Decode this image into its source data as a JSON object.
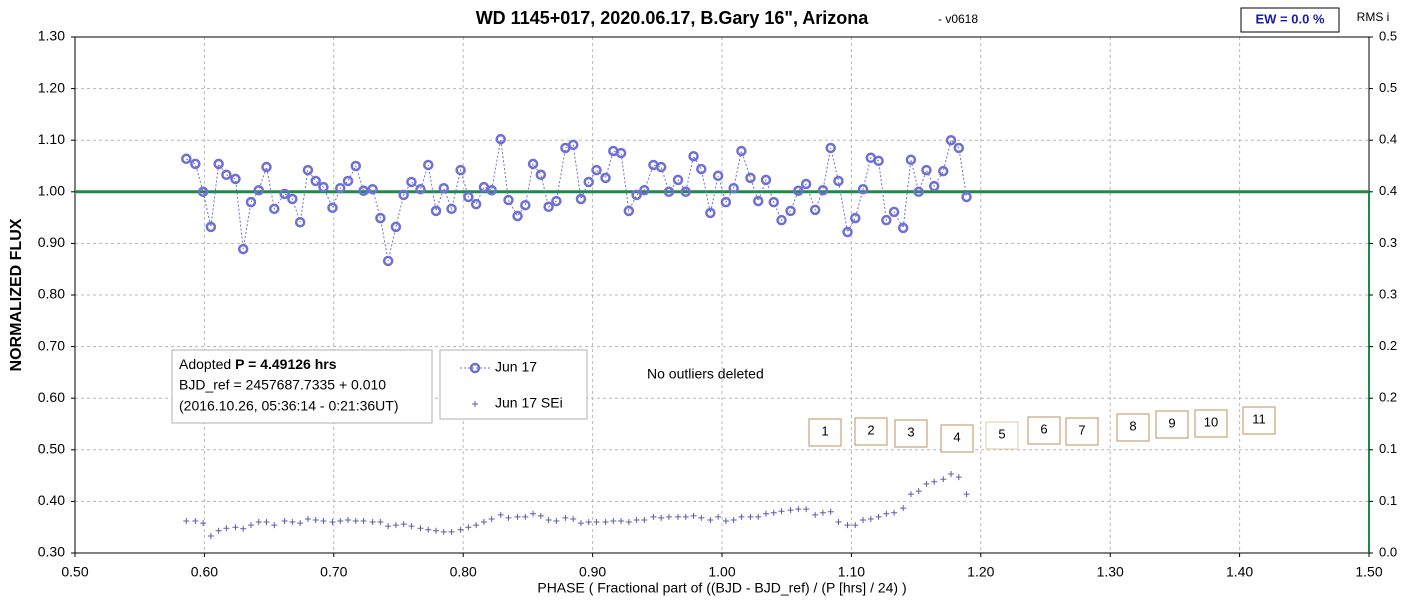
{
  "chart_data": {
    "type": "scatter",
    "title": "WD 1145+017, 2020.06.17, B.Gary 16\", Arizona",
    "version": "- v0618",
    "ew_label": "EW = 0.0 %",
    "y2_label": "RMS i",
    "ylabel": "NORMALIZED FLUX",
    "xlabel": "PHASE ( Fractional part of ((BJD - BJD_ref) / (P [hrs] / 24) )",
    "info": {
      "prefix": "Adopted",
      "period": "P = 4.49126 hrs",
      "line2": "BJD_ref = 2457687.7335 + 0.010",
      "line3": "(2016.10.26, 05:36:14 - 0:21:36UT)"
    },
    "note": "No outliers deleted",
    "box_labels": [
      "1",
      "2",
      "3",
      "4",
      "5",
      "6",
      "7",
      "8",
      "9",
      "10",
      "11"
    ],
    "reference_line": 1.0,
    "reference_color": "#1e8a4a",
    "grid": true,
    "xlim": [
      0.5,
      1.5
    ],
    "xticks": [
      {
        "value": 0.5,
        "label": "0.50"
      },
      {
        "value": 0.6,
        "label": "0.60"
      },
      {
        "value": 0.7,
        "label": "0.70"
      },
      {
        "value": 0.8,
        "label": "0.80"
      },
      {
        "value": 0.9,
        "label": "0.90"
      },
      {
        "value": 1.0,
        "label": "1.00"
      },
      {
        "value": 1.1,
        "label": "1.10"
      },
      {
        "value": 1.2,
        "label": "1.20"
      },
      {
        "value": 1.3,
        "label": "1.30"
      },
      {
        "value": 1.4,
        "label": "1.40"
      },
      {
        "value": 1.5,
        "label": "1.50"
      }
    ],
    "ylim": [
      0.3,
      1.3
    ],
    "yticks": [
      {
        "value": 0.3,
        "label": "0.30"
      },
      {
        "value": 0.4,
        "label": "0.40"
      },
      {
        "value": 0.5,
        "label": "0.50"
      },
      {
        "value": 0.6,
        "label": "0.60"
      },
      {
        "value": 0.7,
        "label": "0.70"
      },
      {
        "value": 0.8,
        "label": "0.80"
      },
      {
        "value": 0.9,
        "label": "0.90"
      },
      {
        "value": 1.0,
        "label": "1.00"
      },
      {
        "value": 1.1,
        "label": "1.10"
      },
      {
        "value": 1.2,
        "label": "1.20"
      },
      {
        "value": 1.3,
        "label": "1.30"
      }
    ],
    "y2lim": [
      0.0,
      0.5
    ],
    "y2ticks": [
      {
        "value": 0.0,
        "label": "0.0"
      },
      {
        "value": 0.05,
        "label": "0.1"
      },
      {
        "value": 0.1,
        "label": "0.1"
      },
      {
        "value": 0.15,
        "label": "0.2"
      },
      {
        "value": 0.2,
        "label": "0.2"
      },
      {
        "value": 0.25,
        "label": "0.3"
      },
      {
        "value": 0.3,
        "label": "0.3"
      },
      {
        "value": 0.35,
        "label": "0.4"
      },
      {
        "value": 0.4,
        "label": "0.4"
      },
      {
        "value": 0.45,
        "label": "0.5"
      },
      {
        "value": 0.5,
        "label": "0.5"
      }
    ],
    "x": [
      0.586,
      0.593,
      0.599,
      0.605,
      0.611,
      0.617,
      0.624,
      0.63,
      0.636,
      0.642,
      0.648,
      0.654,
      0.662,
      0.668,
      0.674,
      0.68,
      0.686,
      0.692,
      0.699,
      0.705,
      0.711,
      0.717,
      0.723,
      0.73,
      0.736,
      0.742,
      0.748,
      0.754,
      0.76,
      0.767,
      0.773,
      0.779,
      0.785,
      0.791,
      0.798,
      0.804,
      0.81,
      0.816,
      0.822,
      0.829,
      0.835,
      0.842,
      0.848,
      0.854,
      0.86,
      0.866,
      0.872,
      0.879,
      0.885,
      0.891,
      0.897,
      0.903,
      0.91,
      0.916,
      0.922,
      0.928,
      0.934,
      0.94,
      0.947,
      0.953,
      0.959,
      0.966,
      0.972,
      0.978,
      0.984,
      0.991,
      0.997,
      1.003,
      1.009,
      1.015,
      1.022,
      1.028,
      1.034,
      1.04,
      1.046,
      1.053,
      1.059,
      1.065,
      1.072,
      1.078,
      1.084,
      1.09,
      1.097,
      1.103,
      1.109,
      1.115,
      1.121,
      1.127,
      1.133,
      1.14,
      1.146,
      1.152,
      1.158,
      1.164,
      1.171,
      1.177,
      1.183,
      1.189
    ],
    "series": [
      {
        "name": "Jun 17",
        "color": "#6f6fd6",
        "marker": "circle",
        "values": [
          1.064,
          1.054,
          1.0,
          0.932,
          1.054,
          1.033,
          1.025,
          0.889,
          0.98,
          1.003,
          1.048,
          0.967,
          0.996,
          0.986,
          0.941,
          1.042,
          1.021,
          1.009,
          0.969,
          1.007,
          1.021,
          1.05,
          1.002,
          1.005,
          0.949,
          0.866,
          0.932,
          0.994,
          1.019,
          1.005,
          1.052,
          0.963,
          1.007,
          0.967,
          1.042,
          0.99,
          0.976,
          1.009,
          1.003,
          1.102,
          0.984,
          0.953,
          0.974,
          1.054,
          1.033,
          0.971,
          0.982,
          1.085,
          1.091,
          0.986,
          1.019,
          1.042,
          1.027,
          1.079,
          1.075,
          0.963,
          0.994,
          1.003,
          1.052,
          1.048,
          1.0,
          1.023,
          1.0,
          1.069,
          1.044,
          0.959,
          1.031,
          0.98,
          1.007,
          1.079,
          1.027,
          0.982,
          1.023,
          0.98,
          0.945,
          0.963,
          1.002,
          1.015,
          0.965,
          1.003,
          1.085,
          1.021,
          0.922,
          0.949,
          1.005,
          1.066,
          1.06,
          0.945,
          0.961,
          0.93,
          1.062,
          1.0,
          1.042,
          1.011,
          1.04,
          1.1,
          1.085,
          0.99
        ]
      },
      {
        "name": "Jun 17 SEi",
        "color": "#5c5cb0",
        "marker": "plus",
        "values": [
          0.362,
          0.362,
          0.358,
          0.333,
          0.343,
          0.348,
          0.35,
          0.347,
          0.354,
          0.36,
          0.36,
          0.354,
          0.362,
          0.36,
          0.358,
          0.366,
          0.364,
          0.362,
          0.36,
          0.362,
          0.364,
          0.362,
          0.362,
          0.36,
          0.36,
          0.352,
          0.354,
          0.356,
          0.352,
          0.348,
          0.345,
          0.343,
          0.341,
          0.341,
          0.345,
          0.35,
          0.354,
          0.36,
          0.366,
          0.374,
          0.368,
          0.37,
          0.37,
          0.376,
          0.372,
          0.364,
          0.362,
          0.368,
          0.366,
          0.358,
          0.36,
          0.36,
          0.36,
          0.362,
          0.362,
          0.36,
          0.364,
          0.364,
          0.37,
          0.368,
          0.37,
          0.37,
          0.37,
          0.372,
          0.368,
          0.364,
          0.37,
          0.362,
          0.364,
          0.37,
          0.37,
          0.37,
          0.376,
          0.378,
          0.381,
          0.383,
          0.385,
          0.385,
          0.374,
          0.378,
          0.38,
          0.36,
          0.354,
          0.354,
          0.364,
          0.366,
          0.37,
          0.376,
          0.378,
          0.387,
          0.414,
          0.42,
          0.434,
          0.438,
          0.443,
          0.453,
          0.447,
          0.414
        ]
      }
    ]
  }
}
